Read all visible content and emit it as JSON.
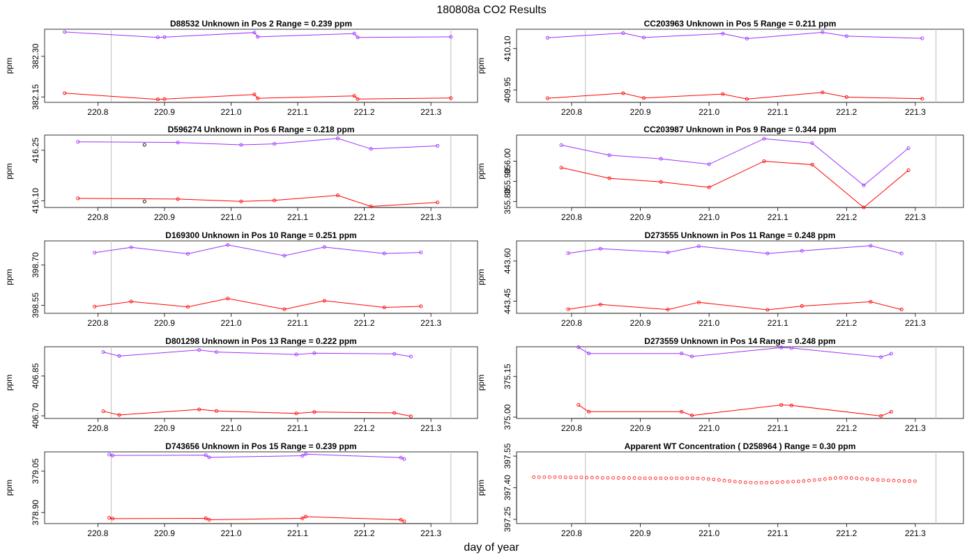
{
  "figure": {
    "title": "180808a  CO2 Results",
    "xlabel": "day of year",
    "vlines": [
      220.82,
      221.33
    ],
    "xlim": [
      220.72,
      221.37
    ],
    "xticks": [
      220.8,
      220.9,
      221.0,
      221.1,
      221.2,
      221.3
    ],
    "xtick_labels": [
      "220.8",
      "220.9",
      "221.0",
      "221.1",
      "221.2",
      "221.3"
    ],
    "series_colors": {
      "upper": "#9b30ff",
      "lower": "#ff0000",
      "extra": "#000000"
    }
  },
  "chart_data": [
    {
      "type": "line",
      "title": "D88532    Unknown in Pos 2         Range =  0.239 ppm",
      "ylabel": "ppm",
      "ylim": [
        382.13,
        382.4
      ],
      "yticks": [
        382.15,
        382.3
      ],
      "ytick_labels": [
        "382.15",
        "382.30"
      ],
      "series": [
        {
          "name": "upper",
          "x": [
            220.75,
            220.89,
            220.9,
            221.035,
            221.04,
            221.185,
            221.19,
            221.33
          ],
          "y": [
            382.39,
            382.37,
            382.371,
            382.388,
            382.372,
            382.384,
            382.37,
            382.372
          ]
        },
        {
          "name": "lower",
          "x": [
            220.75,
            220.89,
            220.9,
            221.035,
            221.04,
            221.185,
            221.19,
            221.33
          ],
          "y": [
            382.164,
            382.141,
            382.142,
            382.159,
            382.145,
            382.154,
            382.142,
            382.146
          ]
        }
      ]
    },
    {
      "type": "line",
      "title": "CC203963    Unknown in Pos 5         Range =  0.211 ppm",
      "ylabel": "ppm",
      "ylim": [
        409.905,
        410.17
      ],
      "yticks": [
        409.95,
        410.1
      ],
      "ytick_labels": [
        "409.95",
        "410.10"
      ],
      "series": [
        {
          "name": "upper",
          "x": [
            220.765,
            220.875,
            220.905,
            221.02,
            221.055,
            221.165,
            221.2,
            221.31
          ],
          "y": [
            410.139,
            410.156,
            410.14,
            410.154,
            410.136,
            410.159,
            410.145,
            410.137
          ]
        },
        {
          "name": "lower",
          "x": [
            220.765,
            220.875,
            220.905,
            221.02,
            221.055,
            221.165,
            221.2,
            221.31
          ],
          "y": [
            409.92,
            409.938,
            409.921,
            409.935,
            409.917,
            409.941,
            409.924,
            409.918
          ]
        }
      ]
    },
    {
      "type": "line",
      "title": "D596274    Unknown in Pos 6         Range =  0.218 ppm",
      "ylabel": "ppm",
      "ylim": [
        416.08,
        416.295
      ],
      "yticks": [
        416.1,
        416.25
      ],
      "ytick_labels": [
        "416.10",
        "416.25"
      ],
      "series": [
        {
          "name": "upper",
          "x": [
            220.77,
            220.92,
            221.015,
            221.065,
            221.16,
            221.21,
            221.31
          ],
          "y": [
            416.275,
            416.273,
            416.266,
            416.269,
            416.285,
            416.254,
            416.263
          ]
        },
        {
          "name": "lower",
          "x": [
            220.77,
            220.92,
            221.015,
            221.065,
            221.16,
            221.21,
            221.31
          ],
          "y": [
            416.107,
            416.105,
            416.098,
            416.101,
            416.116,
            416.083,
            416.095
          ]
        },
        {
          "name": "extra",
          "x": [
            220.87,
            220.87
          ],
          "y": [
            416.266,
            416.098
          ]
        }
      ]
    },
    {
      "type": "line",
      "title": "CC203987    Unknown in Pos 9         Range =  0.344 ppm",
      "ylabel": "ppm",
      "ylim": [
        355.77,
        356.13
      ],
      "yticks": [
        355.8,
        355.9,
        356.0
      ],
      "ytick_labels": [
        "355.80",
        "355.90",
        "356.00"
      ],
      "series": [
        {
          "name": "upper",
          "x": [
            220.785,
            220.855,
            220.93,
            221.0,
            221.08,
            221.15,
            221.225,
            221.29
          ],
          "y": [
            356.08,
            356.03,
            356.012,
            355.985,
            356.112,
            356.09,
            355.88,
            356.065
          ]
        },
        {
          "name": "lower",
          "x": [
            220.785,
            220.855,
            220.93,
            221.0,
            221.08,
            221.15,
            221.225,
            221.29
          ],
          "y": [
            355.968,
            355.915,
            355.897,
            355.87,
            356.0,
            355.983,
            355.77,
            355.955
          ]
        }
      ]
    },
    {
      "type": "line",
      "title": "D169300    Unknown in Pos 10         Range =  0.251 ppm",
      "ylabel": "ppm",
      "ylim": [
        398.52,
        398.79
      ],
      "yticks": [
        398.55,
        398.7
      ],
      "ytick_labels": [
        "398.55",
        "398.70"
      ],
      "series": [
        {
          "name": "upper",
          "x": [
            220.795,
            220.85,
            220.935,
            220.995,
            221.08,
            221.14,
            221.23,
            221.285
          ],
          "y": [
            398.746,
            398.766,
            398.742,
            398.775,
            398.735,
            398.767,
            398.743,
            398.747
          ]
        },
        {
          "name": "lower",
          "x": [
            220.795,
            220.85,
            220.935,
            220.995,
            221.08,
            221.14,
            221.23,
            221.285
          ],
          "y": [
            398.545,
            398.564,
            398.544,
            398.575,
            398.535,
            398.567,
            398.542,
            398.546
          ]
        }
      ]
    },
    {
      "type": "line",
      "title": "D273555    Unknown in Pos 11         Range =  0.248 ppm",
      "ylabel": "ppm",
      "ylim": [
        443.405,
        443.675
      ],
      "yticks": [
        443.45,
        443.6
      ],
      "ytick_labels": [
        "443.45",
        "443.60"
      ],
      "series": [
        {
          "name": "upper",
          "x": [
            220.795,
            220.842,
            220.94,
            220.985,
            221.085,
            221.135,
            221.235,
            221.28
          ],
          "y": [
            443.629,
            443.646,
            443.632,
            443.655,
            443.628,
            443.638,
            443.657,
            443.628
          ]
        },
        {
          "name": "lower",
          "x": [
            220.795,
            220.842,
            220.94,
            220.985,
            221.085,
            221.135,
            221.235,
            221.28
          ],
          "y": [
            443.42,
            443.438,
            443.419,
            443.446,
            443.418,
            443.432,
            443.448,
            443.419
          ]
        }
      ]
    },
    {
      "type": "line",
      "title": "D801298    Unknown in Pos 13         Range =  0.222 ppm",
      "ylabel": "ppm",
      "ylim": [
        406.69,
        406.96
      ],
      "yticks": [
        406.7,
        406.85
      ],
      "ytick_labels": [
        "406.70",
        "406.85"
      ],
      "series": [
        {
          "name": "upper",
          "x": [
            220.808,
            220.832,
            220.952,
            220.978,
            221.098,
            221.125,
            221.245,
            221.27
          ],
          "y": [
            406.94,
            406.925,
            406.948,
            406.94,
            406.931,
            406.936,
            406.933,
            406.923
          ]
        },
        {
          "name": "lower",
          "x": [
            220.808,
            220.832,
            220.952,
            220.978,
            221.098,
            221.125,
            221.245,
            221.27
          ],
          "y": [
            406.717,
            406.703,
            406.724,
            406.718,
            406.709,
            406.714,
            406.711,
            406.698
          ]
        }
      ]
    },
    {
      "type": "line",
      "title": "D273559    Unknown in Pos 14         Range =  0.248 ppm",
      "ylabel": "ppm",
      "ylim": [
        374.995,
        375.26
      ],
      "yticks": [
        375.0,
        375.15
      ],
      "ytick_labels": [
        "375.00",
        "375.15"
      ],
      "series": [
        {
          "name": "upper",
          "x": [
            220.81,
            220.825,
            220.96,
            220.975,
            221.105,
            221.12,
            221.25,
            221.265
          ],
          "y": [
            375.258,
            375.235,
            375.235,
            375.224,
            375.257,
            375.255,
            375.222,
            375.234
          ]
        },
        {
          "name": "lower",
          "x": [
            220.81,
            220.825,
            220.96,
            220.975,
            221.105,
            221.12,
            221.25,
            221.265
          ],
          "y": [
            375.045,
            375.02,
            375.02,
            375.006,
            375.045,
            375.043,
            375.004,
            375.02
          ]
        }
      ]
    },
    {
      "type": "line",
      "title": "D743656    Unknown in Pos 15         Range =  0.239 ppm",
      "ylabel": "ppm",
      "ylim": [
        378.86,
        379.12
      ],
      "yticks": [
        378.9,
        379.05
      ],
      "ytick_labels": [
        "378.90",
        "379.05"
      ],
      "series": [
        {
          "name": "upper",
          "x": [
            220.817,
            220.822,
            220.962,
            220.967,
            221.107,
            221.112,
            221.255,
            221.26
          ],
          "y": [
            379.11,
            379.107,
            379.108,
            379.1,
            379.106,
            379.112,
            379.099,
            379.094
          ]
        },
        {
          "name": "lower",
          "x": [
            220.817,
            220.822,
            220.962,
            220.967,
            221.107,
            221.112,
            221.255,
            221.26
          ],
          "y": [
            378.881,
            378.878,
            378.879,
            378.874,
            378.879,
            378.885,
            378.874,
            378.868
          ]
        }
      ]
    },
    {
      "type": "scatter",
      "title": "Apparent WT Concentration ( D258964 )         Range = 0.30 ppm",
      "ylabel": "ppm",
      "ylim": [
        397.23,
        397.57
      ],
      "yticks": [
        397.25,
        397.4,
        397.55
      ],
      "ytick_labels": [
        "397.25",
        "397.40",
        "397.55"
      ],
      "wt_series": {
        "x_start": 220.745,
        "x_step": 0.0077,
        "count": 73,
        "y": [
          397.45,
          397.45,
          397.45,
          397.45,
          397.45,
          397.45,
          397.449,
          397.449,
          397.449,
          397.449,
          397.448,
          397.448,
          397.448,
          397.447,
          397.447,
          397.447,
          397.446,
          397.446,
          397.446,
          397.446,
          397.445,
          397.445,
          397.445,
          397.445,
          397.445,
          397.445,
          397.445,
          397.445,
          397.445,
          397.445,
          397.445,
          397.444,
          397.443,
          397.441,
          397.439,
          397.437,
          397.434,
          397.432,
          397.429,
          397.427,
          397.425,
          397.424,
          397.424,
          397.424,
          397.424,
          397.425,
          397.426,
          397.427,
          397.428,
          397.429,
          397.43,
          397.432,
          397.434,
          397.436,
          397.438,
          397.441,
          397.444,
          397.446,
          397.447,
          397.447,
          397.446,
          397.445,
          397.443,
          397.441,
          397.439,
          397.437,
          397.436,
          397.435,
          397.434,
          397.433,
          397.432,
          397.432,
          397.431
        ]
      }
    }
  ]
}
